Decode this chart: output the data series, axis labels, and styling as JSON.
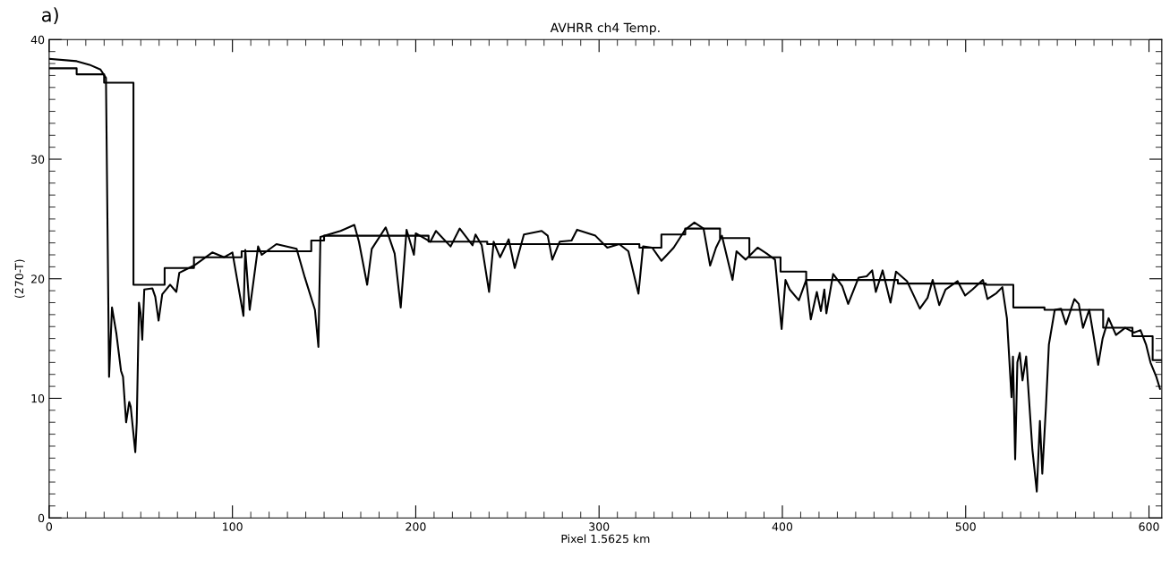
{
  "chart_data": {
    "type": "line",
    "title": "AVHRR ch4 Temp.",
    "xlabel": "Pixel 1.5625 km",
    "ylabel": "(270-T)",
    "annotations": [
      "a)"
    ],
    "xlim": [
      0,
      607
    ],
    "ylim": [
      0,
      40
    ],
    "xticks": [
      0,
      {
        "value": 10,
        "label": null
      },
      {
        "value": 20,
        "label": null
      },
      {
        "value": 30,
        "label": null
      },
      {
        "value": 40,
        "label": null
      },
      {
        "value": 50,
        "label": null
      },
      {
        "value": 60,
        "label": null
      },
      {
        "value": 70,
        "label": null
      },
      {
        "value": 80,
        "label": null
      },
      {
        "value": 90,
        "label": null
      },
      100,
      {
        "value": 110,
        "label": null
      },
      {
        "value": 120,
        "label": null
      },
      {
        "value": 130,
        "label": null
      },
      {
        "value": 140,
        "label": null
      },
      {
        "value": 150,
        "label": null
      },
      {
        "value": 160,
        "label": null
      },
      {
        "value": 170,
        "label": null
      },
      {
        "value": 180,
        "label": null
      },
      {
        "value": 190,
        "label": null
      },
      200,
      {
        "value": 210,
        "label": null
      },
      {
        "value": 220,
        "label": null
      },
      {
        "value": 230,
        "label": null
      },
      {
        "value": 240,
        "label": null
      },
      {
        "value": 250,
        "label": null
      },
      {
        "value": 260,
        "label": null
      },
      {
        "value": 270,
        "label": null
      },
      {
        "value": 280,
        "label": null
      },
      {
        "value": 290,
        "label": null
      },
      300,
      {
        "value": 310,
        "label": null
      },
      {
        "value": 320,
        "label": null
      },
      {
        "value": 330,
        "label": null
      },
      {
        "value": 340,
        "label": null
      },
      {
        "value": 350,
        "label": null
      },
      {
        "value": 360,
        "label": null
      },
      {
        "value": 370,
        "label": null
      },
      {
        "value": 380,
        "label": null
      },
      {
        "value": 390,
        "label": null
      },
      400,
      {
        "value": 410,
        "label": null
      },
      {
        "value": 420,
        "label": null
      },
      {
        "value": 430,
        "label": null
      },
      {
        "value": 440,
        "label": null
      },
      {
        "value": 450,
        "label": null
      },
      {
        "value": 460,
        "label": null
      },
      {
        "value": 470,
        "label": null
      },
      {
        "value": 480,
        "label": null
      },
      {
        "value": 490,
        "label": null
      },
      500,
      {
        "value": 510,
        "label": null
      },
      {
        "value": 520,
        "label": null
      },
      {
        "value": 530,
        "label": null
      },
      {
        "value": 540,
        "label": null
      },
      {
        "value": 550,
        "label": null
      },
      {
        "value": 560,
        "label": null
      },
      {
        "value": 570,
        "label": null
      },
      {
        "value": 580,
        "label": null
      },
      {
        "value": 590,
        "label": null
      },
      600
    ],
    "yticks": [
      0,
      {
        "value": 1,
        "label": null
      },
      {
        "value": 2,
        "label": null
      },
      {
        "value": 3,
        "label": null
      },
      {
        "value": 4,
        "label": null
      },
      {
        "value": 5,
        "label": null
      },
      {
        "value": 6,
        "label": null
      },
      {
        "value": 7,
        "label": null
      },
      {
        "value": 8,
        "label": null
      },
      {
        "value": 9,
        "label": null
      },
      10,
      {
        "value": 11,
        "label": null
      },
      {
        "value": 12,
        "label": null
      },
      {
        "value": 13,
        "label": null
      },
      {
        "value": 14,
        "label": null
      },
      {
        "value": 15,
        "label": null
      },
      {
        "value": 16,
        "label": null
      },
      {
        "value": 17,
        "label": null
      },
      {
        "value": 18,
        "label": null
      },
      {
        "value": 19,
        "label": null
      },
      20,
      {
        "value": 21,
        "label": null
      },
      {
        "value": 22,
        "label": null
      },
      {
        "value": 23,
        "label": null
      },
      {
        "value": 24,
        "label": null
      },
      {
        "value": 25,
        "label": null
      },
      {
        "value": 26,
        "label": null
      },
      {
        "value": 27,
        "label": null
      },
      {
        "value": 28,
        "label": null
      },
      {
        "value": 29,
        "label": null
      },
      30,
      {
        "value": 31,
        "label": null
      },
      {
        "value": 32,
        "label": null
      },
      {
        "value": 33,
        "label": null
      },
      {
        "value": 34,
        "label": null
      },
      {
        "value": 35,
        "label": null
      },
      {
        "value": 36,
        "label": null
      },
      {
        "value": 37,
        "label": null
      },
      {
        "value": 38,
        "label": null
      },
      {
        "value": 39,
        "label": null
      },
      40
    ],
    "grid": false,
    "legend": false,
    "series": [
      {
        "color": "#000000",
        "x": [
          0,
          15,
          22,
          28,
          31,
          32.7,
          34.3,
          36.7,
          39.2,
          40.3,
          42,
          43.7,
          44.5,
          47,
          47.8,
          49,
          49.9,
          50.8,
          51.9,
          56.3,
          57.9,
          59.7,
          61.7,
          66,
          69.4,
          71,
          75,
          79,
          89,
          95.5,
          100,
          106,
          107,
          109.4,
          114,
          116,
          124,
          135,
          139.5,
          145,
          146.9,
          148,
          159,
          166.5,
          169,
          173.5,
          176,
          183.6,
          188.5,
          191.8,
          195,
          199,
          200,
          208,
          211,
          219,
          224,
          231,
          232.6,
          236,
          240,
          242.5,
          246,
          250.7,
          254,
          259,
          268.7,
          272,
          274.5,
          278.5,
          285,
          288,
          298,
          304.5,
          311,
          316,
          321.5,
          324,
          329,
          334,
          340.7,
          347,
          352,
          357,
          360.6,
          363.8,
          367,
          372.8,
          375,
          380,
          386.5,
          391.5,
          396,
          399.6,
          401.7,
          404,
          409,
          413,
          415.5,
          418.8,
          421,
          422.9,
          424,
          427.7,
          432.6,
          435.9,
          441.6,
          446,
          449,
          451,
          454.7,
          459,
          462,
          468,
          475,
          479.2,
          482,
          485.6,
          489,
          495.6,
          499.7,
          503.7,
          509.4,
          511.9,
          516.8,
          520,
          522.5,
          525,
          525.8,
          527,
          528.2,
          529.5,
          531,
          533,
          536.4,
          538.8,
          540.5,
          541.8,
          543.8,
          545.4,
          548.6,
          552,
          554.7,
          559.3,
          561.7,
          564,
          567.4,
          569.8,
          572.3,
          574.7,
          578,
          582,
          587,
          591.8,
          595.4,
          598.4,
          600.8,
          604,
          606
        ],
        "values": [
          38.4,
          38.2,
          37.9,
          37.5,
          36.8,
          11.8,
          17.6,
          15.4,
          12.3,
          11.8,
          8.0,
          9.7,
          9.3,
          5.5,
          8.0,
          18.0,
          17.1,
          14.9,
          19.1,
          19.2,
          18.5,
          16.5,
          18.7,
          19.5,
          18.9,
          20.5,
          20.8,
          21.1,
          22.2,
          21.8,
          22.2,
          16.9,
          22.4,
          17.4,
          22.7,
          22.0,
          22.9,
          22.5,
          20.1,
          17.4,
          14.3,
          23.5,
          24.0,
          24.5,
          23.1,
          19.5,
          22.5,
          24.3,
          22.1,
          17.6,
          24.1,
          22.0,
          23.8,
          23.1,
          24.0,
          22.7,
          24.2,
          22.8,
          23.7,
          22.8,
          18.9,
          23.1,
          21.8,
          23.3,
          20.9,
          23.7,
          24.0,
          23.6,
          21.6,
          23.1,
          23.2,
          24.1,
          23.6,
          22.6,
          22.9,
          22.3,
          18.75,
          22.7,
          22.6,
          21.5,
          22.6,
          24.1,
          24.7,
          24.2,
          21.1,
          22.6,
          23.6,
          19.9,
          22.3,
          21.6,
          22.6,
          22.1,
          21.6,
          15.8,
          19.9,
          19.1,
          18.2,
          19.9,
          16.6,
          18.9,
          17.3,
          19.1,
          17.1,
          20.4,
          19.4,
          17.9,
          20.1,
          20.2,
          20.7,
          18.9,
          20.7,
          18.0,
          20.6,
          19.8,
          17.5,
          18.4,
          19.9,
          17.8,
          19.1,
          19.8,
          18.6,
          19.1,
          19.9,
          18.3,
          18.8,
          19.3,
          16.7,
          10.1,
          13.5,
          4.9,
          13.0,
          13.8,
          11.5,
          13.5,
          5.7,
          2.2,
          8.1,
          3.7,
          9.3,
          14.5,
          17.4,
          17.5,
          16.2,
          18.3,
          17.9,
          15.9,
          17.4,
          15.2,
          12.8,
          15.0,
          16.7,
          15.3,
          15.9,
          15.5,
          15.7,
          14.5,
          13.0,
          11.8,
          10.8
        ]
      },
      {
        "type": "step",
        "color": "#000000",
        "x": [
          0,
          15,
          30,
          46,
          63,
          79,
          105,
          143,
          150,
          207,
          239,
          322,
          334,
          347,
          366,
          382,
          399,
          413,
          463,
          511,
          526,
          543,
          575,
          591,
          602,
          607
        ],
        "values": [
          37.6,
          37.1,
          36.4,
          19.5,
          20.9,
          21.8,
          22.3,
          23.2,
          23.6,
          23.1,
          22.9,
          22.6,
          23.7,
          24.2,
          23.4,
          21.8,
          20.6,
          19.9,
          19.6,
          19.5,
          17.6,
          17.4,
          15.9,
          15.2,
          13.2,
          13.2
        ]
      }
    ]
  }
}
